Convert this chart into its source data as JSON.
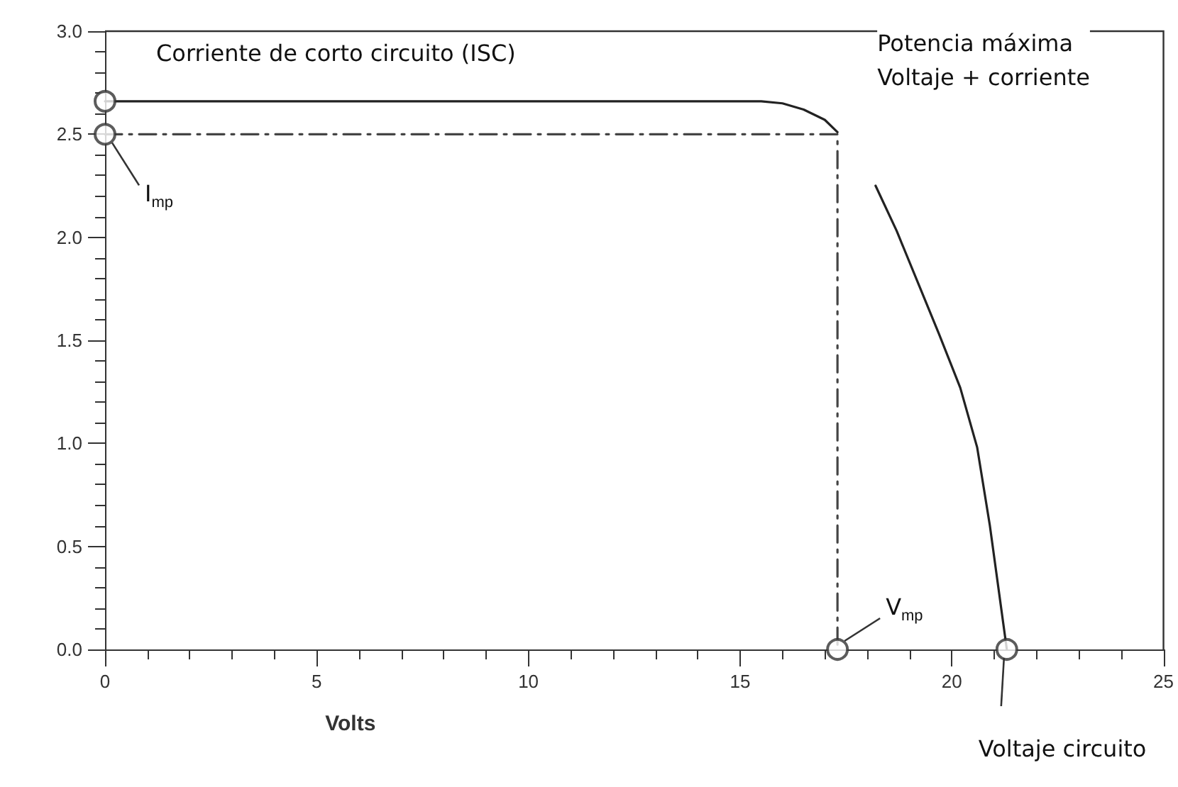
{
  "chart_data": {
    "type": "line",
    "xlabel": "Volts",
    "xlim": [
      0,
      25
    ],
    "xticks": [
      0,
      5,
      10,
      15,
      20,
      25
    ],
    "ylim": [
      0,
      3
    ],
    "yticks": [
      {
        "value": 0,
        "label": "0.0"
      },
      0.5,
      {
        "value": 1,
        "label": "1.0"
      },
      1.5,
      {
        "value": 2,
        "label": "2.0"
      },
      2.5,
      {
        "value": 3,
        "label": "3.0"
      }
    ],
    "grid": false,
    "series": [
      {
        "type": "line",
        "color": "#222222",
        "line_style": "solid",
        "marker": "none",
        "x": [
          0,
          5,
          10,
          15,
          15.5,
          16,
          16.5,
          17,
          17.3,
          17.7,
          18.2,
          18.7,
          19.2,
          19.7,
          20.2,
          20.6,
          20.9,
          21.1,
          21.3
        ],
        "values": [
          2.66,
          2.66,
          2.66,
          2.66,
          2.66,
          2.65,
          2.62,
          2.57,
          2.51,
          null,
          2.25,
          2.03,
          1.78,
          1.53,
          1.27,
          0.98,
          0.6,
          0.3,
          0
        ]
      },
      {
        "type": "line",
        "color": "#444444",
        "line_style": "dashed",
        "marker": "none",
        "x": [
          0,
          17.3,
          17.3
        ],
        "values": [
          2.5,
          2.5,
          0
        ]
      },
      {
        "type": "scatter",
        "color": "#333333",
        "marker": "circle",
        "x": [
          0,
          0,
          17.3,
          21.3
        ],
        "values": [
          2.66,
          2.5,
          0,
          0
        ]
      }
    ],
    "annotations": [
      {
        "text": "Corriente de corto circuito (ISC)",
        "x": 0,
        "y": 2.66
      },
      {
        "text": "I$_{mp}$",
        "x": 0,
        "y": 2.5
      },
      {
        "text": "Potencia máxima\nVoltaje + corriente",
        "x": 17.3,
        "y": 2.5
      },
      {
        "text": "V$_{mp}$",
        "x": 17.3,
        "y": 0
      },
      {
        "text": "Voltaje circuito",
        "x": 21.3,
        "y": 0
      }
    ]
  }
}
